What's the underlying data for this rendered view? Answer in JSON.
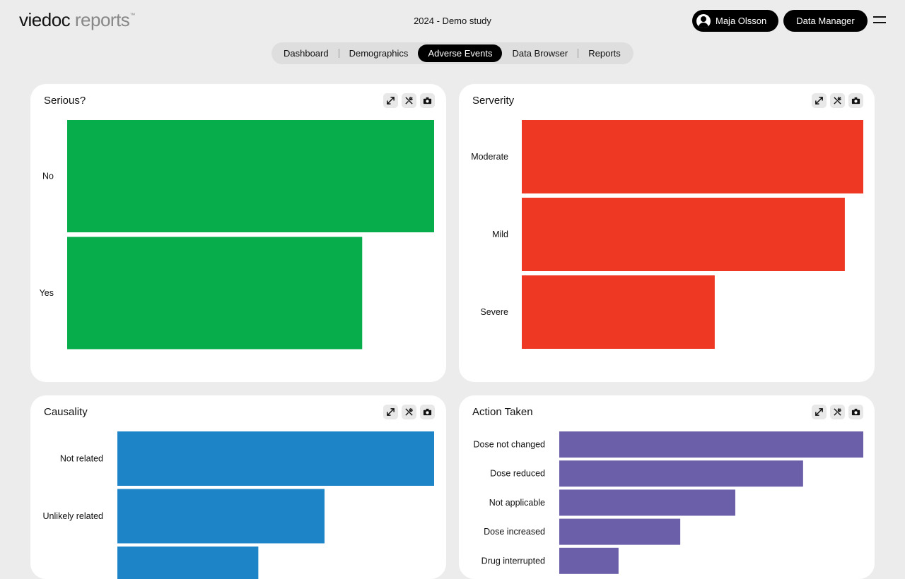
{
  "header": {
    "brand_primary": "viedoc",
    "brand_secondary": "reports",
    "brand_tm": "™",
    "study": "2024 - Demo study",
    "user_name": "Maja Olsson",
    "role": "Data Manager"
  },
  "nav": {
    "tabs": [
      {
        "label": "Dashboard"
      },
      {
        "label": "Demographics"
      },
      {
        "label": "Adverse Events"
      },
      {
        "label": "Data Browser"
      },
      {
        "label": "Reports"
      }
    ],
    "active": "Adverse Events"
  },
  "cards": {
    "serious": {
      "title": "Serious?"
    },
    "severity": {
      "title": "Serverity"
    },
    "causality": {
      "title": "Causality"
    },
    "action": {
      "title": "Action Taken"
    }
  },
  "chart_data": [
    {
      "type": "bar",
      "orientation": "horizontal",
      "title": "Serious?",
      "categories": [
        "No",
        "Yes"
      ],
      "values": [
        100,
        80.4
      ],
      "xlim": [
        0,
        100
      ],
      "color": "#07ad4b"
    },
    {
      "type": "bar",
      "orientation": "horizontal",
      "title": "Serverity",
      "categories": [
        "Moderate",
        "Mild",
        "Severe"
      ],
      "values": [
        100,
        94.6,
        56.5
      ],
      "xlim": [
        0,
        100
      ],
      "color": "#ee3824"
    },
    {
      "type": "bar",
      "orientation": "horizontal",
      "title": "Causality",
      "categories": [
        "Not related",
        "Unlikely related",
        ""
      ],
      "values": [
        100,
        65.4,
        44.5
      ],
      "xlim": [
        0,
        100
      ],
      "color": "#1e84c8"
    },
    {
      "type": "bar",
      "orientation": "horizontal",
      "title": "Action Taken",
      "categories": [
        "Dose not changed",
        "Dose reduced",
        "Not applicable",
        "Dose increased",
        "Drug interrupted"
      ],
      "values": [
        100,
        80.2,
        57.9,
        39.8,
        19.5
      ],
      "xlim": [
        0,
        100
      ],
      "color": "#6c5fa9"
    }
  ]
}
